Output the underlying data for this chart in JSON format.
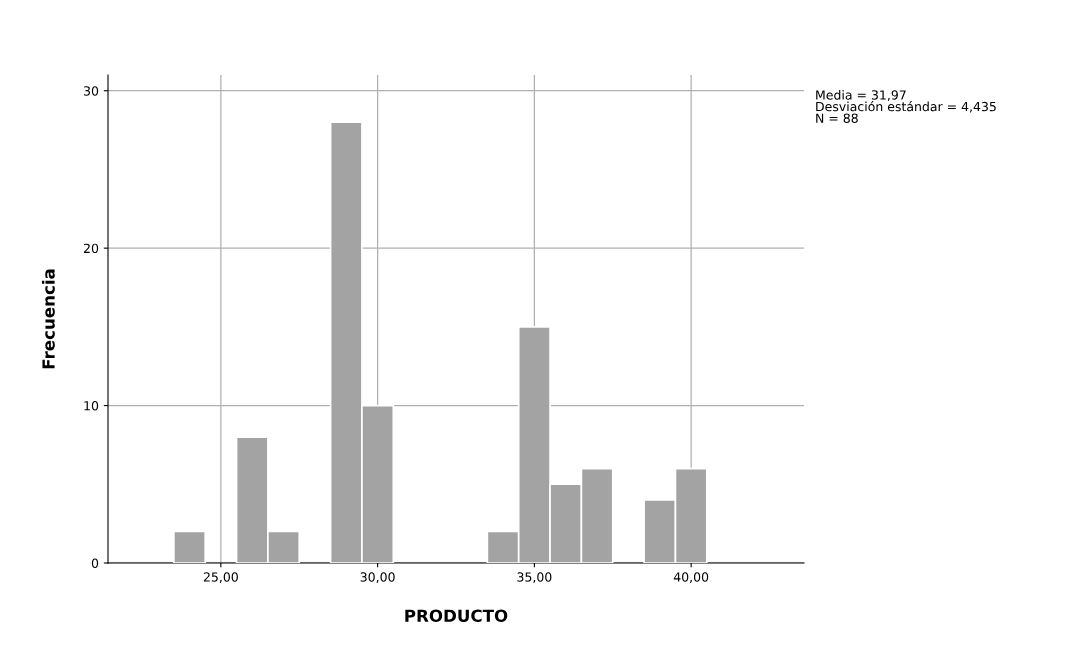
{
  "chart_data": {
    "type": "histogram",
    "xlabel": "PRODUCTO",
    "ylabel": "Frecuencia",
    "bins": [
      23.5,
      24.5,
      25.5,
      26.5,
      27.5,
      28.5,
      29.5,
      30.5,
      31.5,
      32.5,
      33.5,
      34.5,
      35.5,
      36.5,
      37.5,
      38.5,
      39.5,
      40.5
    ],
    "values": [
      2,
      0,
      8,
      2,
      0,
      28,
      10,
      0,
      0,
      0,
      2,
      15,
      5,
      6,
      0,
      4,
      6
    ],
    "color": "#a3a3a3",
    "xlim": [
      21.4,
      43.6
    ],
    "ylim": [
      0,
      31
    ],
    "xticks": [
      {
        "value": 25,
        "label": "25,00"
      },
      {
        "value": 30,
        "label": "30,00"
      },
      {
        "value": 35,
        "label": "35,00"
      },
      {
        "value": 40,
        "label": "40,00"
      }
    ],
    "yticks": [
      0,
      10,
      20,
      30
    ],
    "grid": true,
    "annotations": [
      "Media = 31,97\nDesviación estándar = 4,435\nN = 88"
    ]
  }
}
